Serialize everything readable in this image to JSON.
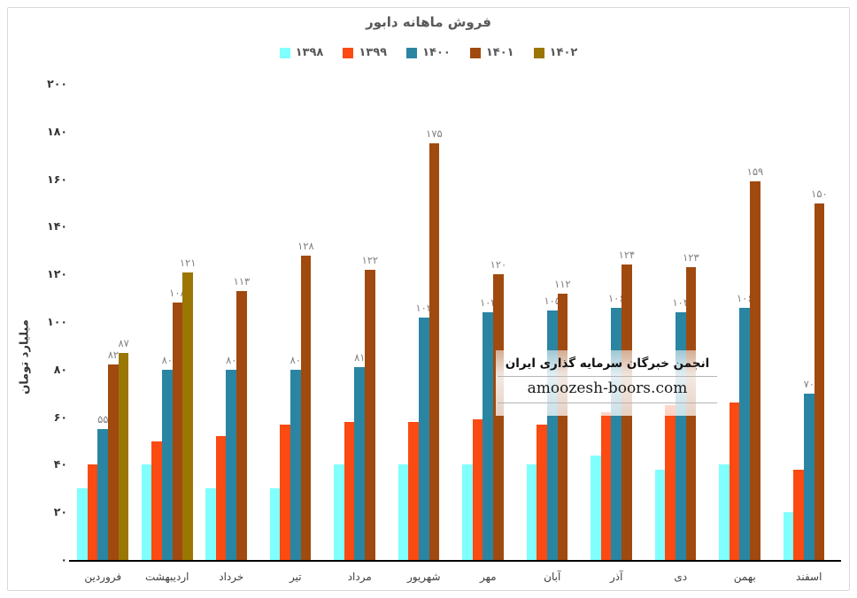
{
  "page": {
    "background": "#ffffff",
    "panel_border_color": "#d9d9d9",
    "axis_line_color": "#000000",
    "title_color": "#595959",
    "tick_label_color": "#333333",
    "data_label_color": "#7f7f7f"
  },
  "watermark": {
    "line1": "انجمن خبرگان سرمایه گذاری ایران",
    "line2": "amoozesh-boors.com"
  },
  "chart_data": {
    "type": "bar",
    "title": "فروش ماهانه دابور",
    "xlabel": "",
    "ylabel": "میلیارد تومان",
    "ylim": [
      0,
      200
    ],
    "grid": false,
    "legend_position": "top",
    "y_tick_values": [
      0,
      20,
      40,
      60,
      80,
      100,
      120,
      140,
      160,
      180,
      200
    ],
    "y_tick_labels_fa": [
      "۰",
      "۲۰",
      "۴۰",
      "۶۰",
      "۸۰",
      "۱۰۰",
      "۱۲۰",
      "۱۴۰",
      "۱۶۰",
      "۱۸۰",
      "۲۰۰"
    ],
    "categories": [
      "فروردین",
      "اردیبهشت",
      "خرداد",
      "تیر",
      "مرداد",
      "شهریور",
      "مهر",
      "آبان",
      "آذر",
      "دی",
      "بهمن",
      "اسفند"
    ],
    "series": [
      {
        "name": "۱۳۹۸",
        "color": "#80ffff",
        "values": [
          30,
          40,
          30,
          30,
          40,
          40,
          40,
          40,
          44,
          38,
          40,
          20
        ],
        "labels_fa": [
          null,
          null,
          null,
          null,
          null,
          null,
          null,
          null,
          null,
          null,
          null,
          null
        ]
      },
      {
        "name": "۱۳۹۹",
        "color": "#fb4a12",
        "values": [
          40,
          50,
          52,
          57,
          58,
          58,
          59,
          57,
          62,
          65,
          66,
          38
        ],
        "labels_fa": [
          null,
          null,
          null,
          null,
          null,
          null,
          null,
          null,
          null,
          null,
          null,
          null
        ]
      },
      {
        "name": "۱۴۰۰",
        "color": "#2a85a2",
        "values": [
          55,
          80,
          80,
          80,
          81,
          102,
          104,
          105,
          106,
          104,
          106,
          70
        ],
        "labels_fa": [
          "۵۵",
          "۸۰",
          "۸۰",
          "۸۰",
          "۸۱",
          "۱۰۲",
          "۱۰۴",
          "۱۰۵",
          "۱۰۶",
          "۱۰۴",
          "۱۰۶",
          "۷۰"
        ]
      },
      {
        "name": "۱۴۰۱",
        "color": "#a04a10",
        "values": [
          82,
          108,
          113,
          128,
          122,
          175,
          120,
          112,
          124,
          123,
          159,
          150
        ],
        "labels_fa": [
          "۸۲",
          "۱۰۸",
          "۱۱۳",
          "۱۲۸",
          "۱۲۲",
          "۱۷۵",
          "۱۲۰",
          "۱۱۲",
          "۱۲۴",
          "۱۲۳",
          "۱۵۹",
          "۱۵۰"
        ]
      },
      {
        "name": "۱۴۰۲",
        "color": "#9b7603",
        "values": [
          87,
          121,
          null,
          null,
          null,
          null,
          null,
          null,
          null,
          null,
          null,
          null
        ],
        "labels_fa": [
          "۸۷",
          "۱۲۱",
          null,
          null,
          null,
          null,
          null,
          null,
          null,
          null,
          null,
          null
        ]
      }
    ]
  }
}
